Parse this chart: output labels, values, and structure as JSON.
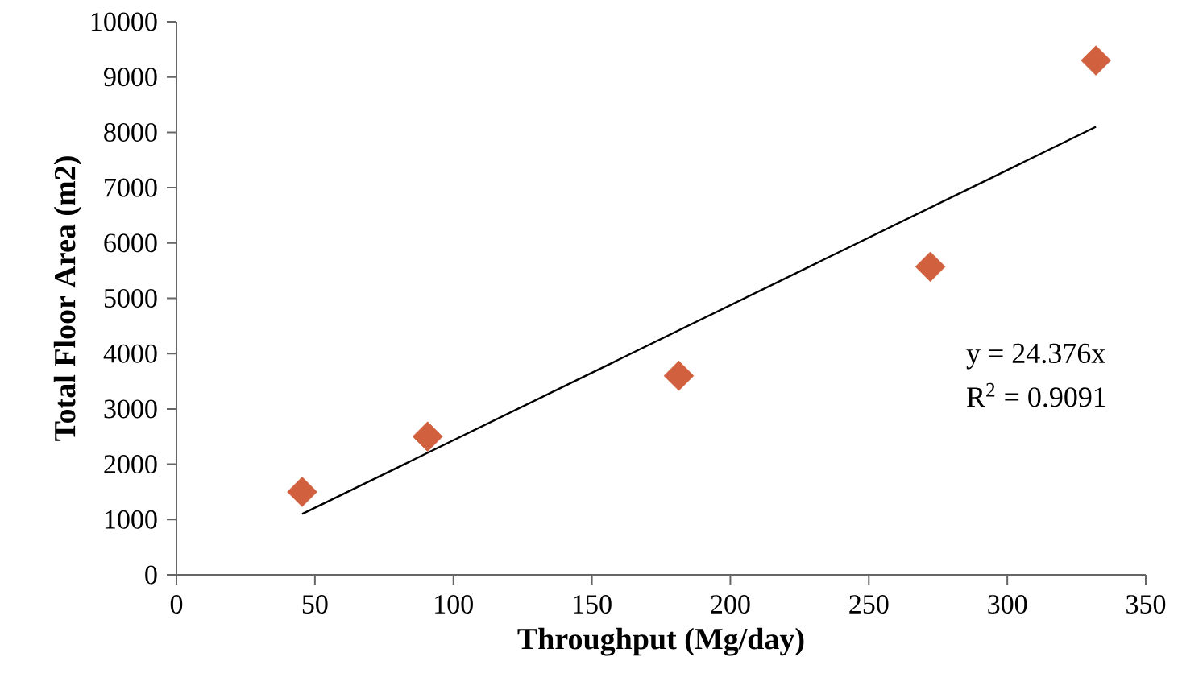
{
  "chart_data": {
    "type": "scatter",
    "xlabel": "Throughput (Mg/day)",
    "ylabel": "Total Floor Area (m2)",
    "xlim": [
      0,
      350
    ],
    "xticks": [
      0,
      50,
      100,
      150,
      200,
      250,
      300,
      350
    ],
    "ylim": [
      0,
      10000
    ],
    "yticks": [
      0,
      1000,
      2000,
      3000,
      4000,
      5000,
      6000,
      7000,
      8000,
      9000,
      10000
    ],
    "series": [
      {
        "color": "#d0603e",
        "marker": "diamond",
        "x": [
          45.4,
          90.7,
          181.4,
          272.2,
          332
        ],
        "values": [
          1500,
          2500,
          3600,
          5570,
          9300
        ]
      },
      {
        "type": "line",
        "color": "#000000",
        "line_style": "solid",
        "x": [
          45.4,
          332
        ],
        "values": [
          1100,
          8100
        ]
      }
    ],
    "annotations": [
      "y = 24.376x",
      "R$^{2}$ = 0.9091"
    ]
  }
}
